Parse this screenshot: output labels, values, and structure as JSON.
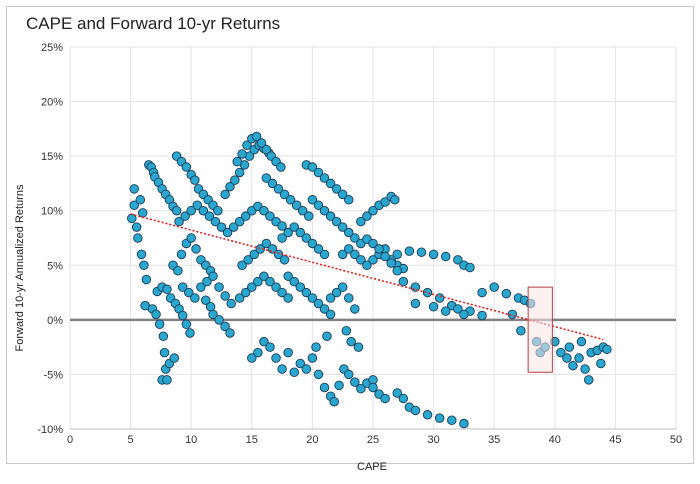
{
  "chart_data": {
    "type": "scatter",
    "title": "CAPE and Forward 10-yr Returns",
    "xlabel": "CAPE",
    "ylabel": "Forward 10-yr Annualized Returns",
    "xlim": [
      0,
      50
    ],
    "ylim": [
      -0.1,
      0.25
    ],
    "x_ticks": [
      "0",
      "5",
      "10",
      "15",
      "20",
      "25",
      "30",
      "35",
      "40",
      "45",
      "50"
    ],
    "y_ticks": [
      "25%",
      "20%",
      "15%",
      "10%",
      "5%",
      "0%",
      "-5%",
      "-10%"
    ],
    "grid": true,
    "colors": {
      "point": "#2aa7cf",
      "point_stroke": "#1c3b55",
      "trend": "#e02020",
      "zero_line": "#808080",
      "highlight_fill": "#fbe3e3",
      "highlight_stroke": "#b04040"
    },
    "trendline": {
      "x": [
        5,
        44
      ],
      "y": [
        0.097,
        -0.018
      ]
    },
    "highlight_region": {
      "x": [
        37.8,
        39.8
      ],
      "y": [
        -0.048,
        0.03
      ]
    },
    "series": [
      {
        "points": [
          [
            5.1,
            0.093
          ],
          [
            5.3,
            0.105
          ],
          [
            5.5,
            0.085
          ],
          [
            5.3,
            0.12
          ],
          [
            5.6,
            0.075
          ],
          [
            5.8,
            0.11
          ],
          [
            6.0,
            0.098
          ],
          [
            5.9,
            0.06
          ],
          [
            6.1,
            0.05
          ],
          [
            6.3,
            0.037
          ],
          [
            6.2,
            0.013
          ],
          [
            6.5,
            0.142
          ],
          [
            6.7,
            0.14
          ],
          [
            6.9,
            0.135
          ],
          [
            7.0,
            0.131
          ],
          [
            7.3,
            0.126
          ],
          [
            7.6,
            0.12
          ],
          [
            7.9,
            0.115
          ],
          [
            8.2,
            0.11
          ],
          [
            8.5,
            0.104
          ],
          [
            8.8,
            0.1
          ],
          [
            6.8,
            0.01
          ],
          [
            7.1,
            0.005
          ],
          [
            7.4,
            -0.004
          ],
          [
            7.7,
            -0.015
          ],
          [
            7.8,
            -0.03
          ],
          [
            7.9,
            -0.045
          ],
          [
            7.6,
            -0.055
          ],
          [
            8.0,
            -0.055
          ],
          [
            8.2,
            -0.04
          ],
          [
            8.6,
            -0.035
          ],
          [
            7.2,
            0.026
          ],
          [
            7.6,
            0.03
          ],
          [
            8.0,
            0.028
          ],
          [
            8.3,
            0.02
          ],
          [
            8.7,
            0.015
          ],
          [
            9.0,
            0.01
          ],
          [
            9.3,
            0.004
          ],
          [
            9.6,
            -0.004
          ],
          [
            9.9,
            -0.012
          ],
          [
            8.8,
            0.15
          ],
          [
            9.2,
            0.145
          ],
          [
            9.6,
            0.14
          ],
          [
            10.0,
            0.133
          ],
          [
            10.3,
            0.128
          ],
          [
            10.6,
            0.12
          ],
          [
            11.0,
            0.115
          ],
          [
            11.4,
            0.11
          ],
          [
            11.8,
            0.105
          ],
          [
            12.2,
            0.1
          ],
          [
            8.5,
            0.05
          ],
          [
            8.9,
            0.045
          ],
          [
            9.2,
            0.06
          ],
          [
            9.6,
            0.07
          ],
          [
            10.0,
            0.075
          ],
          [
            10.4,
            0.065
          ],
          [
            10.8,
            0.055
          ],
          [
            11.2,
            0.05
          ],
          [
            11.6,
            0.045
          ],
          [
            9.0,
            0.09
          ],
          [
            9.5,
            0.095
          ],
          [
            10.0,
            0.1
          ],
          [
            10.5,
            0.105
          ],
          [
            11.0,
            0.1
          ],
          [
            11.5,
            0.095
          ],
          [
            12.0,
            0.09
          ],
          [
            12.5,
            0.085
          ],
          [
            13.0,
            0.08
          ],
          [
            9.3,
            0.03
          ],
          [
            9.8,
            0.025
          ],
          [
            10.3,
            0.02
          ],
          [
            10.8,
            0.03
          ],
          [
            11.3,
            0.035
          ],
          [
            11.8,
            0.04
          ],
          [
            12.3,
            0.03
          ],
          [
            12.8,
            0.022
          ],
          [
            13.3,
            0.015
          ],
          [
            11.8,
            0.005
          ],
          [
            12.3,
            0.0
          ],
          [
            12.8,
            -0.006
          ],
          [
            13.2,
            -0.012
          ],
          [
            11.2,
            0.018
          ],
          [
            11.6,
            0.012
          ],
          [
            12.8,
            0.115
          ],
          [
            13.2,
            0.122
          ],
          [
            13.6,
            0.128
          ],
          [
            14.0,
            0.135
          ],
          [
            14.4,
            0.142
          ],
          [
            14.8,
            0.15
          ],
          [
            15.2,
            0.156
          ],
          [
            15.6,
            0.16
          ],
          [
            16.0,
            0.157
          ],
          [
            16.4,
            0.153
          ],
          [
            13.8,
            0.145
          ],
          [
            14.2,
            0.152
          ],
          [
            14.6,
            0.16
          ],
          [
            15.0,
            0.166
          ],
          [
            15.4,
            0.168
          ],
          [
            15.8,
            0.162
          ],
          [
            16.2,
            0.156
          ],
          [
            16.6,
            0.15
          ],
          [
            17.0,
            0.145
          ],
          [
            17.4,
            0.14
          ],
          [
            13.5,
            0.085
          ],
          [
            14.0,
            0.09
          ],
          [
            14.5,
            0.095
          ],
          [
            15.0,
            0.1
          ],
          [
            15.5,
            0.104
          ],
          [
            16.0,
            0.1
          ],
          [
            16.5,
            0.095
          ],
          [
            17.0,
            0.09
          ],
          [
            17.5,
            0.086
          ],
          [
            14.2,
            0.05
          ],
          [
            14.7,
            0.055
          ],
          [
            15.2,
            0.06
          ],
          [
            15.7,
            0.065
          ],
          [
            16.2,
            0.07
          ],
          [
            16.7,
            0.065
          ],
          [
            17.2,
            0.06
          ],
          [
            17.7,
            0.055
          ],
          [
            14.0,
            0.02
          ],
          [
            14.5,
            0.025
          ],
          [
            15.0,
            0.03
          ],
          [
            15.5,
            0.035
          ],
          [
            16.0,
            0.04
          ],
          [
            16.5,
            0.035
          ],
          [
            17.0,
            0.03
          ],
          [
            17.5,
            0.025
          ],
          [
            18.0,
            0.02
          ],
          [
            15.0,
            -0.035
          ],
          [
            15.5,
            -0.03
          ],
          [
            16.0,
            -0.02
          ],
          [
            16.5,
            -0.025
          ],
          [
            17.0,
            -0.035
          ],
          [
            17.5,
            -0.045
          ],
          [
            18.0,
            -0.03
          ],
          [
            18.5,
            -0.048
          ],
          [
            19.0,
            -0.04
          ],
          [
            16.2,
            0.13
          ],
          [
            16.7,
            0.125
          ],
          [
            17.2,
            0.12
          ],
          [
            17.7,
            0.115
          ],
          [
            18.2,
            0.11
          ],
          [
            18.7,
            0.105
          ],
          [
            19.2,
            0.1
          ],
          [
            19.7,
            0.095
          ],
          [
            17.5,
            0.075
          ],
          [
            18.0,
            0.08
          ],
          [
            18.5,
            0.085
          ],
          [
            19.0,
            0.08
          ],
          [
            19.5,
            0.075
          ],
          [
            20.0,
            0.07
          ],
          [
            20.5,
            0.065
          ],
          [
            21.0,
            0.06
          ],
          [
            18.0,
            0.04
          ],
          [
            18.5,
            0.035
          ],
          [
            19.0,
            0.03
          ],
          [
            19.5,
            0.025
          ],
          [
            20.0,
            0.02
          ],
          [
            20.5,
            0.015
          ],
          [
            21.0,
            0.01
          ],
          [
            21.5,
            0.005
          ],
          [
            19.5,
            0.142
          ],
          [
            20.0,
            0.14
          ],
          [
            20.5,
            0.135
          ],
          [
            21.0,
            0.13
          ],
          [
            21.5,
            0.125
          ],
          [
            22.0,
            0.12
          ],
          [
            22.5,
            0.115
          ],
          [
            23.0,
            0.11
          ],
          [
            20.0,
            0.11
          ],
          [
            20.5,
            0.105
          ],
          [
            21.0,
            0.1
          ],
          [
            21.5,
            0.095
          ],
          [
            22.0,
            0.09
          ],
          [
            22.5,
            0.085
          ],
          [
            23.0,
            0.08
          ],
          [
            23.5,
            0.075
          ],
          [
            24.0,
            0.07
          ],
          [
            20.5,
            -0.05
          ],
          [
            21.0,
            -0.062
          ],
          [
            21.5,
            -0.07
          ],
          [
            21.8,
            -0.075
          ],
          [
            22.2,
            -0.06
          ],
          [
            22.6,
            -0.045
          ],
          [
            23.0,
            -0.05
          ],
          [
            23.5,
            -0.057
          ],
          [
            24.0,
            -0.063
          ],
          [
            24.5,
            -0.058
          ],
          [
            25.0,
            -0.055
          ],
          [
            19.5,
            -0.045
          ],
          [
            20.0,
            -0.035
          ],
          [
            20.3,
            -0.025
          ],
          [
            21.2,
            -0.015
          ],
          [
            21.5,
            0.02
          ],
          [
            22.0,
            0.025
          ],
          [
            22.5,
            0.03
          ],
          [
            23.0,
            0.02
          ],
          [
            23.5,
            0.01
          ],
          [
            22.8,
            -0.01
          ],
          [
            23.2,
            -0.02
          ],
          [
            23.8,
            -0.025
          ],
          [
            22.5,
            0.06
          ],
          [
            23.0,
            0.065
          ],
          [
            23.5,
            0.06
          ],
          [
            24.0,
            0.055
          ],
          [
            24.5,
            0.05
          ],
          [
            25.0,
            0.055
          ],
          [
            25.5,
            0.06
          ],
          [
            26.0,
            0.065
          ],
          [
            26.5,
            0.055
          ],
          [
            27.0,
            0.05
          ],
          [
            27.5,
            0.047
          ],
          [
            24.0,
            0.09
          ],
          [
            24.5,
            0.095
          ],
          [
            25.0,
            0.1
          ],
          [
            25.5,
            0.105
          ],
          [
            26.0,
            0.108
          ],
          [
            26.5,
            0.113
          ],
          [
            26.8,
            0.11
          ],
          [
            24.5,
            0.074
          ],
          [
            25.0,
            0.07
          ],
          [
            25.5,
            0.065
          ],
          [
            26.0,
            0.058
          ],
          [
            26.5,
            0.052
          ],
          [
            27.0,
            0.045
          ],
          [
            25.0,
            -0.062
          ],
          [
            25.5,
            -0.068
          ],
          [
            26.0,
            -0.072
          ],
          [
            27.0,
            -0.067
          ],
          [
            27.5,
            -0.072
          ],
          [
            28.0,
            -0.08
          ],
          [
            28.5,
            -0.083
          ],
          [
            29.5,
            -0.087
          ],
          [
            30.5,
            -0.09
          ],
          [
            31.5,
            -0.092
          ],
          [
            32.5,
            -0.095
          ],
          [
            27.0,
            0.06
          ],
          [
            28.0,
            0.063
          ],
          [
            29.0,
            0.062
          ],
          [
            30.0,
            0.06
          ],
          [
            31.0,
            0.058
          ],
          [
            32.0,
            0.055
          ],
          [
            32.5,
            0.05
          ],
          [
            33.0,
            0.048
          ],
          [
            27.5,
            0.035
          ],
          [
            28.5,
            0.03
          ],
          [
            29.5,
            0.025
          ],
          [
            30.5,
            0.02
          ],
          [
            31.5,
            0.013
          ],
          [
            32.0,
            0.01
          ],
          [
            33.0,
            0.008
          ],
          [
            34.0,
            0.004
          ],
          [
            28.5,
            0.015
          ],
          [
            30.0,
            0.012
          ],
          [
            31.0,
            0.008
          ],
          [
            32.5,
            0.005
          ],
          [
            34.0,
            0.025
          ],
          [
            35.0,
            0.03
          ],
          [
            36.0,
            0.024
          ],
          [
            37.0,
            0.02
          ],
          [
            37.5,
            0.018
          ],
          [
            38.0,
            0.015
          ],
          [
            36.5,
            0.005
          ],
          [
            37.2,
            -0.01
          ],
          [
            38.5,
            -0.02
          ],
          [
            38.8,
            -0.03
          ],
          [
            39.2,
            -0.025
          ],
          [
            40.0,
            -0.02
          ],
          [
            40.5,
            -0.03
          ],
          [
            41.0,
            -0.035
          ],
          [
            41.5,
            -0.042
          ],
          [
            42.0,
            -0.035
          ],
          [
            42.5,
            -0.045
          ],
          [
            42.8,
            -0.055
          ],
          [
            43.0,
            -0.03
          ],
          [
            43.5,
            -0.028
          ],
          [
            44.0,
            -0.025
          ],
          [
            44.3,
            -0.027
          ],
          [
            41.2,
            -0.025
          ],
          [
            42.2,
            -0.02
          ],
          [
            43.8,
            -0.04
          ]
        ]
      }
    ]
  }
}
